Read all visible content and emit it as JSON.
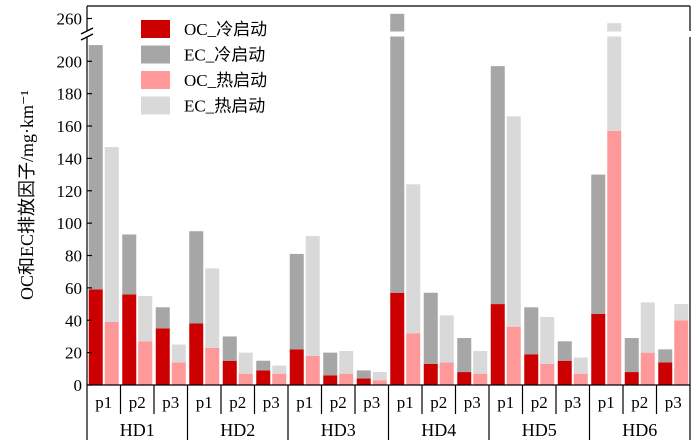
{
  "chart_data": {
    "type": "bar",
    "stacked": true,
    "ylabel": "OC和EC排放因子/mg·km⁻¹",
    "y_axis_break": {
      "from": 215,
      "to": 252
    },
    "yticks": [
      0,
      20,
      40,
      60,
      80,
      100,
      120,
      140,
      160,
      180,
      200,
      260
    ],
    "ylim": [
      0,
      268
    ],
    "groups": [
      "HD1",
      "HD2",
      "HD3",
      "HD4",
      "HD5",
      "HD6"
    ],
    "phases": [
      "p1",
      "p2",
      "p3"
    ],
    "legend_position": "top-left",
    "series": [
      {
        "name": "OC_冷启动",
        "condition": "cold",
        "component": "OC",
        "color": "#cc0000",
        "values": [
          [
            59,
            56,
            35
          ],
          [
            38,
            15,
            9
          ],
          [
            22,
            6,
            4
          ],
          [
            57,
            13,
            8
          ],
          [
            50,
            19,
            15
          ],
          [
            44,
            8,
            14
          ]
        ]
      },
      {
        "name": "EC_冷启动",
        "condition": "cold",
        "component": "EC",
        "color": "#a6a6a6",
        "values": [
          [
            151,
            37,
            13
          ],
          [
            57,
            15,
            6
          ],
          [
            59,
            14,
            5
          ],
          [
            206,
            44,
            21
          ],
          [
            147,
            29,
            12
          ],
          [
            86,
            21,
            8
          ]
        ]
      },
      {
        "name": "OC_热启动",
        "condition": "hot",
        "component": "OC",
        "color": "#ff9999",
        "values": [
          [
            39,
            27,
            14
          ],
          [
            23,
            7,
            7
          ],
          [
            18,
            7,
            3
          ],
          [
            32,
            14,
            7
          ],
          [
            36,
            13,
            7
          ],
          [
            157,
            20,
            40
          ]
        ]
      },
      {
        "name": "EC_热启动",
        "condition": "hot",
        "component": "EC",
        "color": "#d9d9d9",
        "values": [
          [
            108,
            28,
            11
          ],
          [
            49,
            13,
            5
          ],
          [
            74,
            14,
            5
          ],
          [
            92,
            29,
            14
          ],
          [
            130,
            29,
            10
          ],
          [
            100,
            31,
            10
          ]
        ]
      }
    ]
  }
}
